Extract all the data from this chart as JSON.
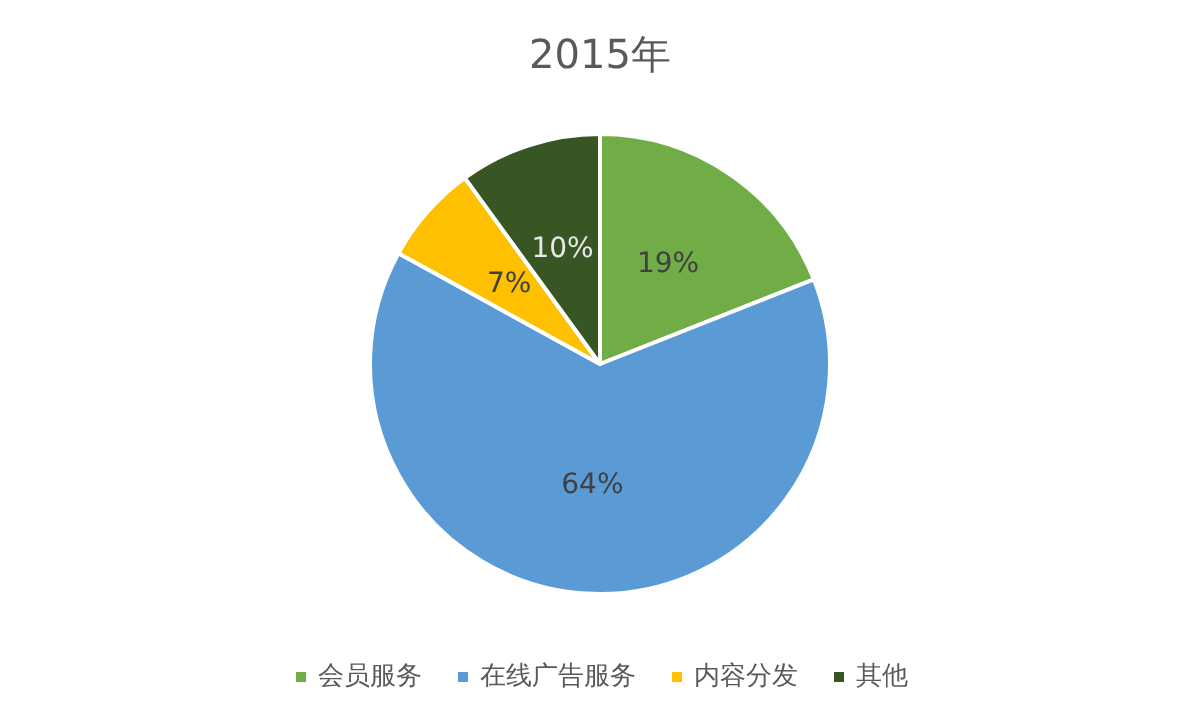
{
  "chart_data": {
    "type": "pie",
    "title": "2015年",
    "categories": [
      "会员服务",
      "在线广告服务",
      "内容分发",
      "其他"
    ],
    "values": [
      19,
      64,
      7,
      10
    ],
    "value_labels": [
      "19%",
      "64%",
      "7%",
      "10%"
    ],
    "colors": [
      "#70ad47",
      "#5b9bd5",
      "#ffc000",
      "#375623"
    ],
    "legend": "bottom"
  }
}
